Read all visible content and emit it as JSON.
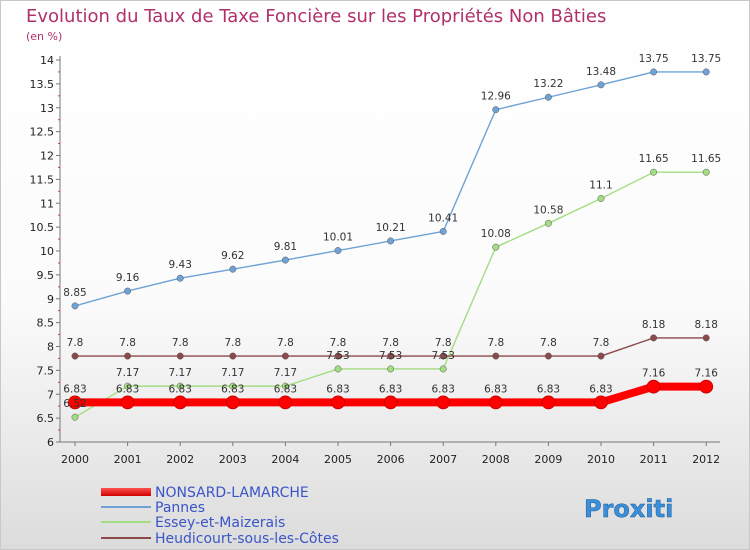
{
  "chart_data": {
    "type": "line",
    "title": "Evolution du Taux de Taxe Foncière sur les Propriétés Non Bâties",
    "subtitle": "(en %)",
    "xlabel": "",
    "ylabel": "",
    "x": [
      "2000",
      "2001",
      "2002",
      "2003",
      "2004",
      "2005",
      "2006",
      "2007",
      "2008",
      "2009",
      "2010",
      "2011",
      "2012"
    ],
    "yticks": [
      6,
      6.5,
      7,
      7.5,
      8,
      8.5,
      9,
      9.5,
      10,
      10.5,
      11,
      11.5,
      12,
      12.5,
      13,
      13.5,
      14
    ],
    "ylim": [
      6,
      14
    ],
    "grid": false,
    "legend_position": "bottom-left",
    "series": [
      {
        "name": "NONSARD-LAMARCHE",
        "color": "#ff0000",
        "values": [
          6.83,
          6.83,
          6.83,
          6.83,
          6.83,
          6.83,
          6.83,
          6.83,
          6.83,
          6.83,
          6.83,
          7.16,
          7.16
        ],
        "labels": [
          "6.83",
          "6.83",
          "6.83",
          "6.83",
          "6.83",
          "6.83",
          "6.83",
          "6.83",
          "6.83",
          "6.83",
          "6.83",
          "7.16",
          "7.16"
        ]
      },
      {
        "name": "Pannes",
        "color": "#6fa3d6",
        "values": [
          8.85,
          9.16,
          9.43,
          9.62,
          9.81,
          10.01,
          10.21,
          10.41,
          12.96,
          13.22,
          13.48,
          13.75,
          13.75
        ],
        "labels": [
          "8.85",
          "9.16",
          "9.43",
          "9.62",
          "9.81",
          "10.01",
          "10.21",
          "10.41",
          "12.96",
          "13.22",
          "13.48",
          "13.75",
          "13.75"
        ]
      },
      {
        "name": "Essey-et-Maizerais",
        "color": "#a3dd82",
        "values": [
          6.52,
          7.17,
          7.17,
          7.17,
          7.17,
          7.53,
          7.53,
          7.53,
          10.08,
          10.58,
          11.1,
          11.65,
          11.65
        ],
        "labels": [
          "6.52",
          "7.17",
          "7.17",
          "7.17",
          "7.17",
          "7.53",
          "7.53",
          "7.53",
          "10.08",
          "10.58",
          "11.1",
          "11.65",
          "11.65"
        ]
      },
      {
        "name": "Heudicourt-sous-les-Côtes",
        "color": "#8b4a4a",
        "values": [
          7.8,
          7.8,
          7.8,
          7.8,
          7.8,
          7.8,
          7.8,
          7.8,
          7.8,
          7.8,
          7.8,
          8.18,
          8.18
        ],
        "labels": [
          "7.8",
          "7.8",
          "7.8",
          "7.8",
          "7.8",
          "7.8",
          "7.8",
          "7.8",
          "7.8",
          "7.8",
          "7.8",
          "8.18",
          "8.18"
        ]
      }
    ]
  },
  "logo": {
    "text": "Proxiti"
  }
}
